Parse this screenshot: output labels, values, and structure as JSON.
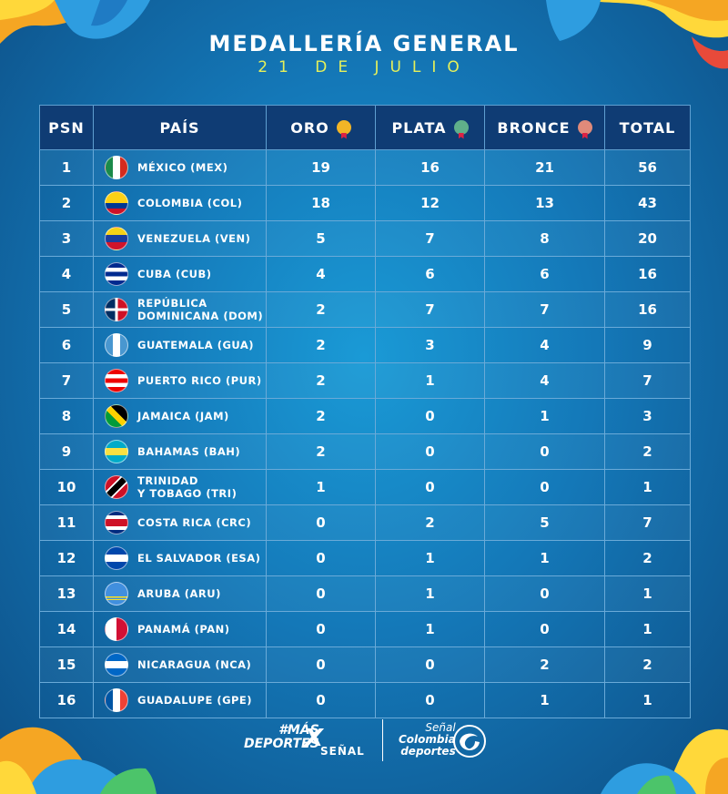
{
  "header": {
    "title": "MEDALLERÍA GENERAL",
    "subtitle": "21 DE JULIO"
  },
  "columns": {
    "psn": "PSN",
    "pais": "PAÍS",
    "oro": "ORO",
    "plata": "PLATA",
    "bronce": "BRONCE",
    "total": "TOTAL"
  },
  "colors": {
    "gold": "#f2b526",
    "silver": "#5fb08a",
    "bronze": "#e08a7a",
    "header_bg": "#0f3c74"
  },
  "rows": [
    {
      "psn": "1",
      "pais": "MÉXICO (MEX)",
      "oro": "19",
      "plata": "16",
      "bronce": "21",
      "total": "56",
      "flag": "mexico-flag-icon"
    },
    {
      "psn": "2",
      "pais": "COLOMBIA (COL)",
      "oro": "18",
      "plata": "12",
      "bronce": "13",
      "total": "43",
      "flag": "colombia-flag-icon"
    },
    {
      "psn": "3",
      "pais": "VENEZUELA (VEN)",
      "oro": "5",
      "plata": "7",
      "bronce": "8",
      "total": "20",
      "flag": "venezuela-flag-icon"
    },
    {
      "psn": "4",
      "pais": "CUBA (CUB)",
      "oro": "4",
      "plata": "6",
      "bronce": "6",
      "total": "16",
      "flag": "cuba-flag-icon"
    },
    {
      "psn": "5",
      "pais": "REPÚBLICA DOMINICANA (DOM)",
      "pais_line1": "REPÚBLICA",
      "pais_line2": "DOMINICANA (DOM)",
      "oro": "2",
      "plata": "7",
      "bronce": "7",
      "total": "16",
      "flag": "dominican-republic-flag-icon"
    },
    {
      "psn": "6",
      "pais": "GUATEMALA (GUA)",
      "oro": "2",
      "plata": "3",
      "bronce": "4",
      "total": "9",
      "flag": "guatemala-flag-icon"
    },
    {
      "psn": "7",
      "pais": "PUERTO RICO (PUR)",
      "oro": "2",
      "plata": "1",
      "bronce": "4",
      "total": "7",
      "flag": "puerto-rico-flag-icon"
    },
    {
      "psn": "8",
      "pais": "JAMAICA (JAM)",
      "oro": "2",
      "plata": "0",
      "bronce": "1",
      "total": "3",
      "flag": "jamaica-flag-icon"
    },
    {
      "psn": "9",
      "pais": "BAHAMAS (BAH)",
      "oro": "2",
      "plata": "0",
      "bronce": "0",
      "total": "2",
      "flag": "bahamas-flag-icon"
    },
    {
      "psn": "10",
      "pais": "TRINIDAD Y TOBAGO (TRI)",
      "pais_line1": "TRINIDAD",
      "pais_line2": "Y TOBAGO (TRI)",
      "oro": "1",
      "plata": "0",
      "bronce": "0",
      "total": "1",
      "flag": "trinidad-tobago-flag-icon"
    },
    {
      "psn": "11",
      "pais": "COSTA RICA (CRC)",
      "oro": "0",
      "plata": "2",
      "bronce": "5",
      "total": "7",
      "flag": "costa-rica-flag-icon"
    },
    {
      "psn": "12",
      "pais": "EL SALVADOR (ESA)",
      "oro": "0",
      "plata": "1",
      "bronce": "1",
      "total": "2",
      "flag": "el-salvador-flag-icon"
    },
    {
      "psn": "13",
      "pais": "ARUBA (ARU)",
      "oro": "0",
      "plata": "1",
      "bronce": "0",
      "total": "1",
      "flag": "aruba-flag-icon"
    },
    {
      "psn": "14",
      "pais": "PANAMÁ (PAN)",
      "oro": "0",
      "plata": "1",
      "bronce": "0",
      "total": "1",
      "flag": "panama-flag-icon"
    },
    {
      "psn": "15",
      "pais": "NICARAGUA (NCA)",
      "oro": "0",
      "plata": "0",
      "bronce": "2",
      "total": "2",
      "flag": "nicaragua-flag-icon"
    },
    {
      "psn": "16",
      "pais": "GUADALUPE (GPE)",
      "oro": "0",
      "plata": "0",
      "bronce": "1",
      "total": "1",
      "flag": "guadalupe-flag-icon"
    }
  ],
  "footer": {
    "mas_line1": "#MÁS",
    "mas_line2": "DEPORTES",
    "x": "X",
    "senal": "SEÑAL",
    "sc_line1": "Señal",
    "sc_line2": "Colombia",
    "sc_line3": "deportes"
  }
}
